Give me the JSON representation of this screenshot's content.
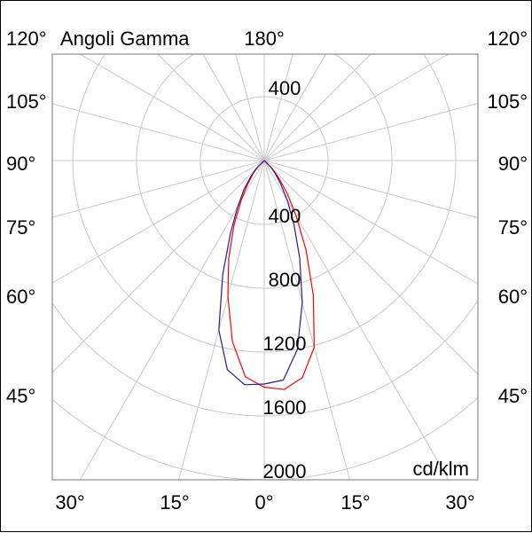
{
  "chart_data": {
    "type": "polar",
    "title": "Angoli Gamma",
    "unit_label": "cd/klm",
    "radial_ticks": [
      400,
      800,
      1200,
      1600,
      2000
    ],
    "upper_radial_tick": "400",
    "top_angle_label": "180°",
    "side_angle_labels": [
      "120°",
      "105°",
      "90°",
      "75°",
      "60°",
      "45°"
    ],
    "bottom_angle_labels": [
      "30°",
      "15°",
      "0°",
      "15°",
      "30°"
    ],
    "grid": true,
    "angle_step": 15,
    "angles": [
      -45,
      -40,
      -35,
      -30,
      -25,
      -20,
      -15,
      -10,
      -5,
      0,
      5,
      10,
      15,
      20,
      25,
      30,
      35,
      40,
      45
    ],
    "series": [
      {
        "color": "#ff0000",
        "values": [
          60,
          110,
          180,
          290,
          450,
          650,
          880,
          1150,
          1360,
          1420,
          1440,
          1380,
          1210,
          900,
          620,
          400,
          250,
          140,
          70
        ]
      },
      {
        "color": "#2a1a8c",
        "values": [
          70,
          130,
          220,
          330,
          500,
          760,
          1100,
          1330,
          1410,
          1400,
          1380,
          1200,
          920,
          650,
          440,
          290,
          180,
          110,
          60
        ]
      }
    ]
  }
}
